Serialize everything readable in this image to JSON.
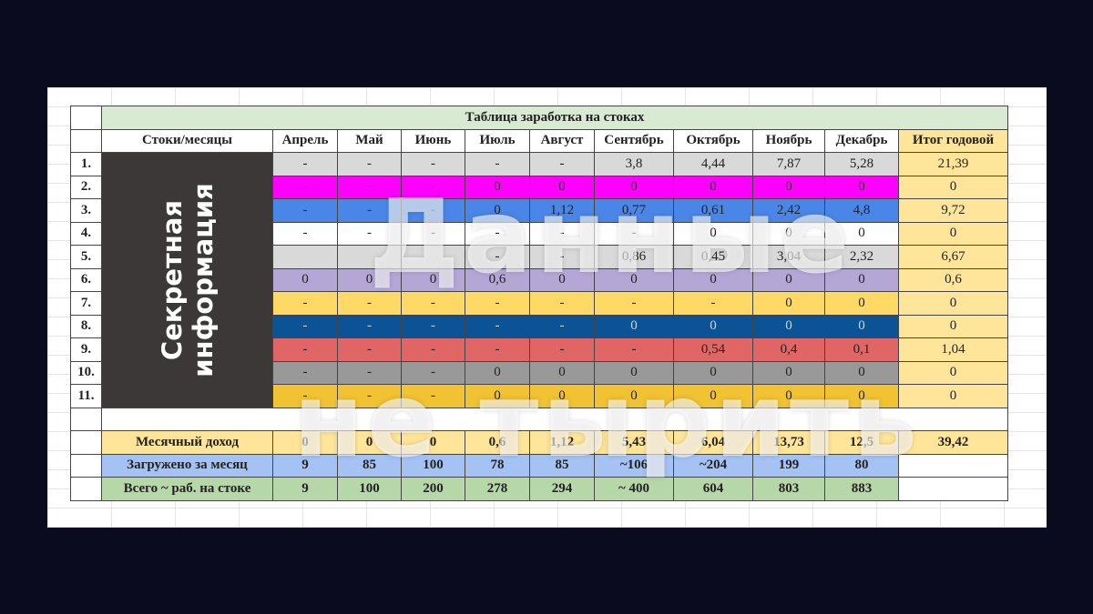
{
  "table": {
    "title": "Таблица заработка на стоках",
    "header_label": "Стоки/месяцы",
    "months": [
      "Апрель",
      "Май",
      "Июнь",
      "Июль",
      "Август",
      "Сентябрь",
      "Октябрь",
      "Ноябрь",
      "Декабрь"
    ],
    "total_header": "Итог годовой",
    "secret_label_line1": "Секретная",
    "secret_label_line2": "информация",
    "rows": [
      {
        "num": "1.",
        "color": "#d9d9d9",
        "values": [
          "-",
          "-",
          "-",
          "-",
          "-",
          "3,8",
          "4,44",
          "7,87",
          "5,28"
        ],
        "total": "21,39"
      },
      {
        "num": "2.",
        "color": "#ff00ff",
        "values": [
          "-",
          "-",
          "-",
          "0",
          "0",
          "0",
          "0",
          "0",
          "0"
        ],
        "total": "0"
      },
      {
        "num": "3.",
        "color": "#4a86e8",
        "values": [
          "-",
          "-",
          "-",
          "0",
          "1,12",
          "0,77",
          "0,61",
          "2,42",
          "4,8"
        ],
        "total": "9,72"
      },
      {
        "num": "4.",
        "color": "#ffffff",
        "values": [
          "-",
          "-",
          "-",
          "-",
          "-",
          "-",
          "0",
          "0",
          "0"
        ],
        "total": "0"
      },
      {
        "num": "5.",
        "color": "#d9d9d9",
        "values": [
          "",
          "",
          "",
          "-",
          "-",
          "0,86",
          "0,45",
          "3,04",
          "2,32"
        ],
        "total": "6,67"
      },
      {
        "num": "6.",
        "color": "#b4a7d6",
        "values": [
          "0",
          "0",
          "0",
          "0,6",
          "0",
          "0",
          "0",
          "0",
          "0"
        ],
        "total": "0,6"
      },
      {
        "num": "7.",
        "color": "#ffd966",
        "values": [
          "-",
          "-",
          "-",
          "-",
          "-",
          "-",
          "-",
          "0",
          "0"
        ],
        "total": "0"
      },
      {
        "num": "8.",
        "color": "#0b5394",
        "values": [
          "-",
          "-",
          "-",
          "-",
          "-",
          "0",
          "0",
          "0",
          "0"
        ],
        "total": "0"
      },
      {
        "num": "9.",
        "color": "#e06666",
        "values": [
          "-",
          "-",
          "-",
          "-",
          "-",
          "-",
          "0,54",
          "0,4",
          "0,1"
        ],
        "total": "1,04"
      },
      {
        "num": "10.",
        "color": "#999999",
        "values": [
          "-",
          "-",
          "-",
          "0",
          "0",
          "0",
          "0",
          "0",
          "0"
        ],
        "total": "0"
      },
      {
        "num": "11.",
        "color": "#f1c232",
        "values": [
          "-",
          "-",
          "-",
          "0",
          "0",
          "0",
          "0",
          "0",
          "0"
        ],
        "total": "0"
      }
    ],
    "summary": [
      {
        "label": "Месячный доход",
        "color": "#ffe599",
        "values": [
          "0",
          "0",
          "0",
          "0,6",
          "1,12",
          "5,43",
          "6,04",
          "13,73",
          "12,5"
        ],
        "total": "39,42"
      },
      {
        "label": "Загружено за месяц",
        "color": "#a4c2f4",
        "values": [
          "9",
          "85",
          "100",
          "78",
          "85",
          "~106",
          "~204",
          "199",
          "80"
        ],
        "total": ""
      },
      {
        "label": "Всего ~ раб. на стоке",
        "color": "#b6d7a8",
        "values": [
          "9",
          "100",
          "200",
          "278",
          "294",
          "~ 400",
          "604",
          "803",
          "883"
        ],
        "total": ""
      }
    ]
  },
  "watermark": {
    "line1": "Данные",
    "line2": "не тырить"
  }
}
